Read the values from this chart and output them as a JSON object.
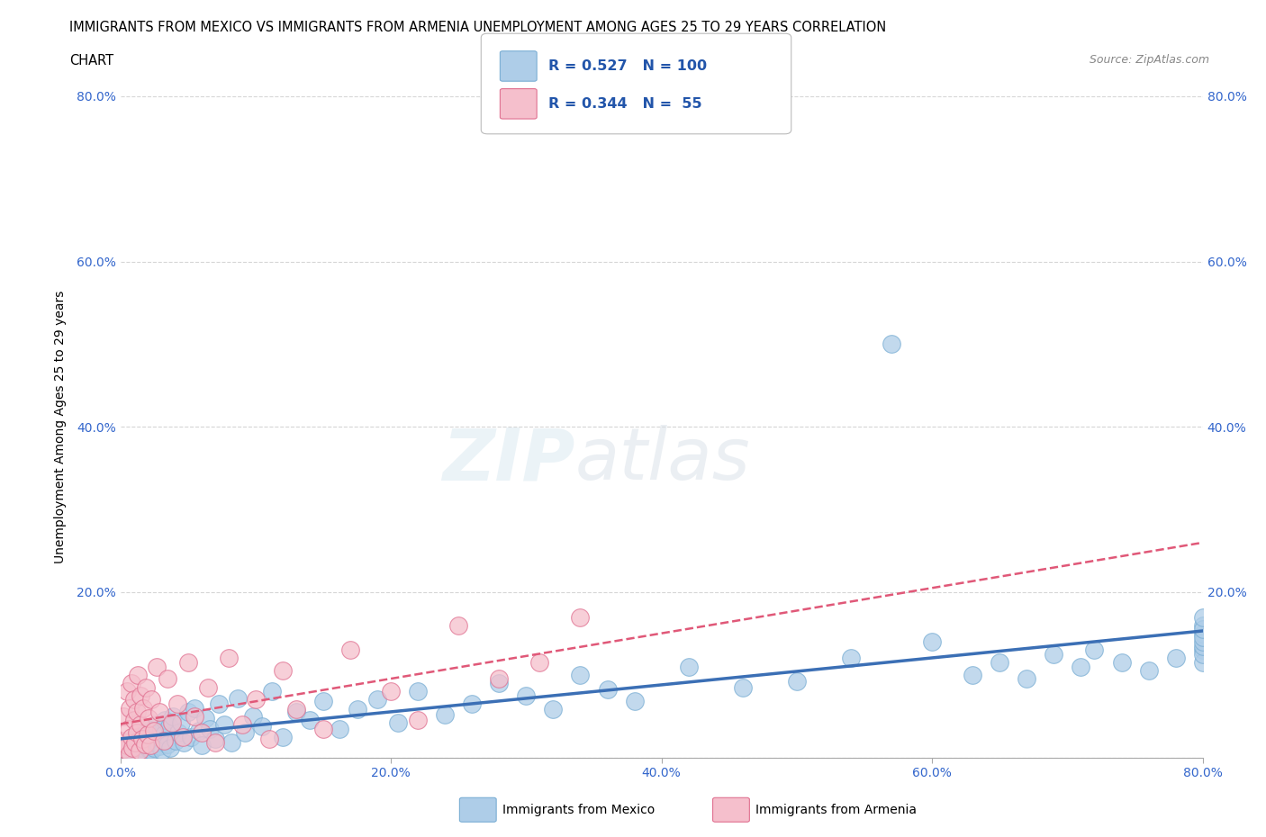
{
  "title_line1": "IMMIGRANTS FROM MEXICO VS IMMIGRANTS FROM ARMENIA UNEMPLOYMENT AMONG AGES 25 TO 29 YEARS CORRELATION",
  "title_line2": "CHART",
  "source": "Source: ZipAtlas.com",
  "ylabel": "Unemployment Among Ages 25 to 29 years",
  "xlim": [
    0.0,
    0.8
  ],
  "ylim": [
    0.0,
    0.8
  ],
  "xticks": [
    0.0,
    0.2,
    0.4,
    0.6,
    0.8
  ],
  "yticks": [
    0.0,
    0.2,
    0.4,
    0.6,
    0.8
  ],
  "xticklabels": [
    "0.0%",
    "20.0%",
    "40.0%",
    "60.0%",
    "80.0%"
  ],
  "right_yticklabels": [
    "20.0%",
    "40.0%",
    "60.0%",
    "80.0%"
  ],
  "right_yticks": [
    0.2,
    0.4,
    0.6,
    0.8
  ],
  "mexico_color": "#aecde8",
  "mexico_edge": "#7aaed4",
  "mexico_line": "#3b6fb5",
  "armenia_color": "#f5bfcc",
  "armenia_edge": "#e07090",
  "armenia_line": "#e05878",
  "legend_text_color": "#2255aa",
  "watermark_color": "#d8e8f0",
  "watermark_color2": "#d8e0e8",
  "background_color": "#ffffff",
  "grid_color": "#cccccc",
  "tick_color": "#3366cc",
  "mexico_R": 0.527,
  "mexico_N": 100,
  "armenia_R": 0.344,
  "armenia_N": 55,
  "mexico_x": [
    0.003,
    0.005,
    0.007,
    0.008,
    0.01,
    0.01,
    0.01,
    0.012,
    0.012,
    0.013,
    0.015,
    0.015,
    0.016,
    0.017,
    0.018,
    0.018,
    0.019,
    0.019,
    0.02,
    0.02,
    0.021,
    0.022,
    0.022,
    0.023,
    0.024,
    0.025,
    0.026,
    0.027,
    0.028,
    0.029,
    0.03,
    0.031,
    0.032,
    0.033,
    0.035,
    0.036,
    0.037,
    0.039,
    0.041,
    0.043,
    0.045,
    0.047,
    0.05,
    0.052,
    0.055,
    0.058,
    0.06,
    0.063,
    0.066,
    0.07,
    0.073,
    0.077,
    0.082,
    0.087,
    0.092,
    0.098,
    0.105,
    0.112,
    0.12,
    0.13,
    0.14,
    0.15,
    0.162,
    0.175,
    0.19,
    0.205,
    0.22,
    0.24,
    0.26,
    0.28,
    0.3,
    0.32,
    0.34,
    0.36,
    0.38,
    0.42,
    0.46,
    0.5,
    0.54,
    0.57,
    0.6,
    0.63,
    0.65,
    0.67,
    0.69,
    0.71,
    0.72,
    0.74,
    0.76,
    0.78,
    0.8,
    0.8,
    0.8,
    0.8,
    0.8,
    0.8,
    0.8,
    0.8,
    0.8,
    0.8
  ],
  "mexico_y": [
    0.01,
    0.015,
    0.008,
    0.02,
    0.012,
    0.005,
    0.018,
    0.025,
    0.01,
    0.015,
    0.008,
    0.022,
    0.012,
    0.03,
    0.018,
    0.006,
    0.025,
    0.014,
    0.02,
    0.035,
    0.01,
    0.028,
    0.015,
    0.008,
    0.032,
    0.012,
    0.04,
    0.018,
    0.022,
    0.014,
    0.035,
    0.008,
    0.028,
    0.045,
    0.016,
    0.038,
    0.012,
    0.05,
    0.02,
    0.03,
    0.042,
    0.018,
    0.055,
    0.025,
    0.06,
    0.032,
    0.015,
    0.048,
    0.035,
    0.022,
    0.065,
    0.04,
    0.018,
    0.072,
    0.03,
    0.05,
    0.038,
    0.08,
    0.025,
    0.055,
    0.045,
    0.068,
    0.035,
    0.058,
    0.07,
    0.042,
    0.08,
    0.052,
    0.065,
    0.09,
    0.075,
    0.058,
    0.1,
    0.082,
    0.068,
    0.11,
    0.085,
    0.092,
    0.12,
    0.5,
    0.14,
    0.1,
    0.115,
    0.095,
    0.125,
    0.11,
    0.13,
    0.115,
    0.105,
    0.12,
    0.13,
    0.115,
    0.125,
    0.135,
    0.15,
    0.14,
    0.16,
    0.145,
    0.155,
    0.17
  ],
  "armenia_x": [
    0.0,
    0.002,
    0.003,
    0.005,
    0.005,
    0.006,
    0.007,
    0.007,
    0.008,
    0.008,
    0.009,
    0.01,
    0.01,
    0.011,
    0.012,
    0.012,
    0.013,
    0.014,
    0.015,
    0.015,
    0.016,
    0.017,
    0.018,
    0.019,
    0.02,
    0.021,
    0.022,
    0.023,
    0.025,
    0.027,
    0.029,
    0.032,
    0.035,
    0.038,
    0.042,
    0.046,
    0.05,
    0.055,
    0.06,
    0.065,
    0.07,
    0.08,
    0.09,
    0.1,
    0.11,
    0.12,
    0.13,
    0.15,
    0.17,
    0.2,
    0.22,
    0.25,
    0.28,
    0.31,
    0.34
  ],
  "armenia_y": [
    0.02,
    0.05,
    0.01,
    0.08,
    0.015,
    0.035,
    0.005,
    0.06,
    0.025,
    0.09,
    0.012,
    0.045,
    0.07,
    0.018,
    0.055,
    0.03,
    0.1,
    0.008,
    0.04,
    0.075,
    0.022,
    0.06,
    0.016,
    0.085,
    0.028,
    0.048,
    0.015,
    0.07,
    0.032,
    0.11,
    0.055,
    0.02,
    0.095,
    0.042,
    0.065,
    0.025,
    0.115,
    0.05,
    0.03,
    0.085,
    0.018,
    0.12,
    0.04,
    0.07,
    0.022,
    0.105,
    0.058,
    0.035,
    0.13,
    0.08,
    0.045,
    0.16,
    0.095,
    0.115,
    0.17
  ]
}
